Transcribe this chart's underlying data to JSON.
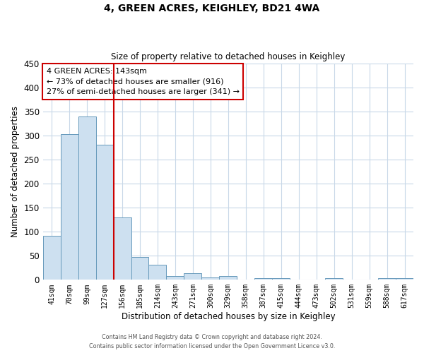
{
  "title": "4, GREEN ACRES, KEIGHLEY, BD21 4WA",
  "subtitle": "Size of property relative to detached houses in Keighley",
  "xlabel": "Distribution of detached houses by size in Keighley",
  "ylabel": "Number of detached properties",
  "bar_labels": [
    "41sqm",
    "70sqm",
    "99sqm",
    "127sqm",
    "156sqm",
    "185sqm",
    "214sqm",
    "243sqm",
    "271sqm",
    "300sqm",
    "329sqm",
    "358sqm",
    "387sqm",
    "415sqm",
    "444sqm",
    "473sqm",
    "502sqm",
    "531sqm",
    "559sqm",
    "588sqm",
    "617sqm"
  ],
  "bar_values": [
    92,
    302,
    340,
    280,
    130,
    47,
    31,
    8,
    13,
    5,
    8,
    0,
    3,
    3,
    0,
    0,
    3,
    0,
    0,
    3,
    3
  ],
  "bar_color": "#cde0f0",
  "bar_edge_color": "#6699bb",
  "vline_color": "#cc0000",
  "vline_x_index": 3.5,
  "ylim": [
    0,
    450
  ],
  "yticks": [
    0,
    50,
    100,
    150,
    200,
    250,
    300,
    350,
    400,
    450
  ],
  "annotation_title": "4 GREEN ACRES: 143sqm",
  "annotation_line1": "← 73% of detached houses are smaller (916)",
  "annotation_line2": "27% of semi-detached houses are larger (341) →",
  "annotation_box_color": "#ffffff",
  "annotation_box_edge": "#cc0000",
  "footer1": "Contains HM Land Registry data © Crown copyright and database right 2024.",
  "footer2": "Contains public sector information licensed under the Open Government Licence v3.0.",
  "background_color": "#ffffff",
  "grid_color": "#c8d8e8",
  "title_fontsize": 10,
  "subtitle_fontsize": 8.5
}
